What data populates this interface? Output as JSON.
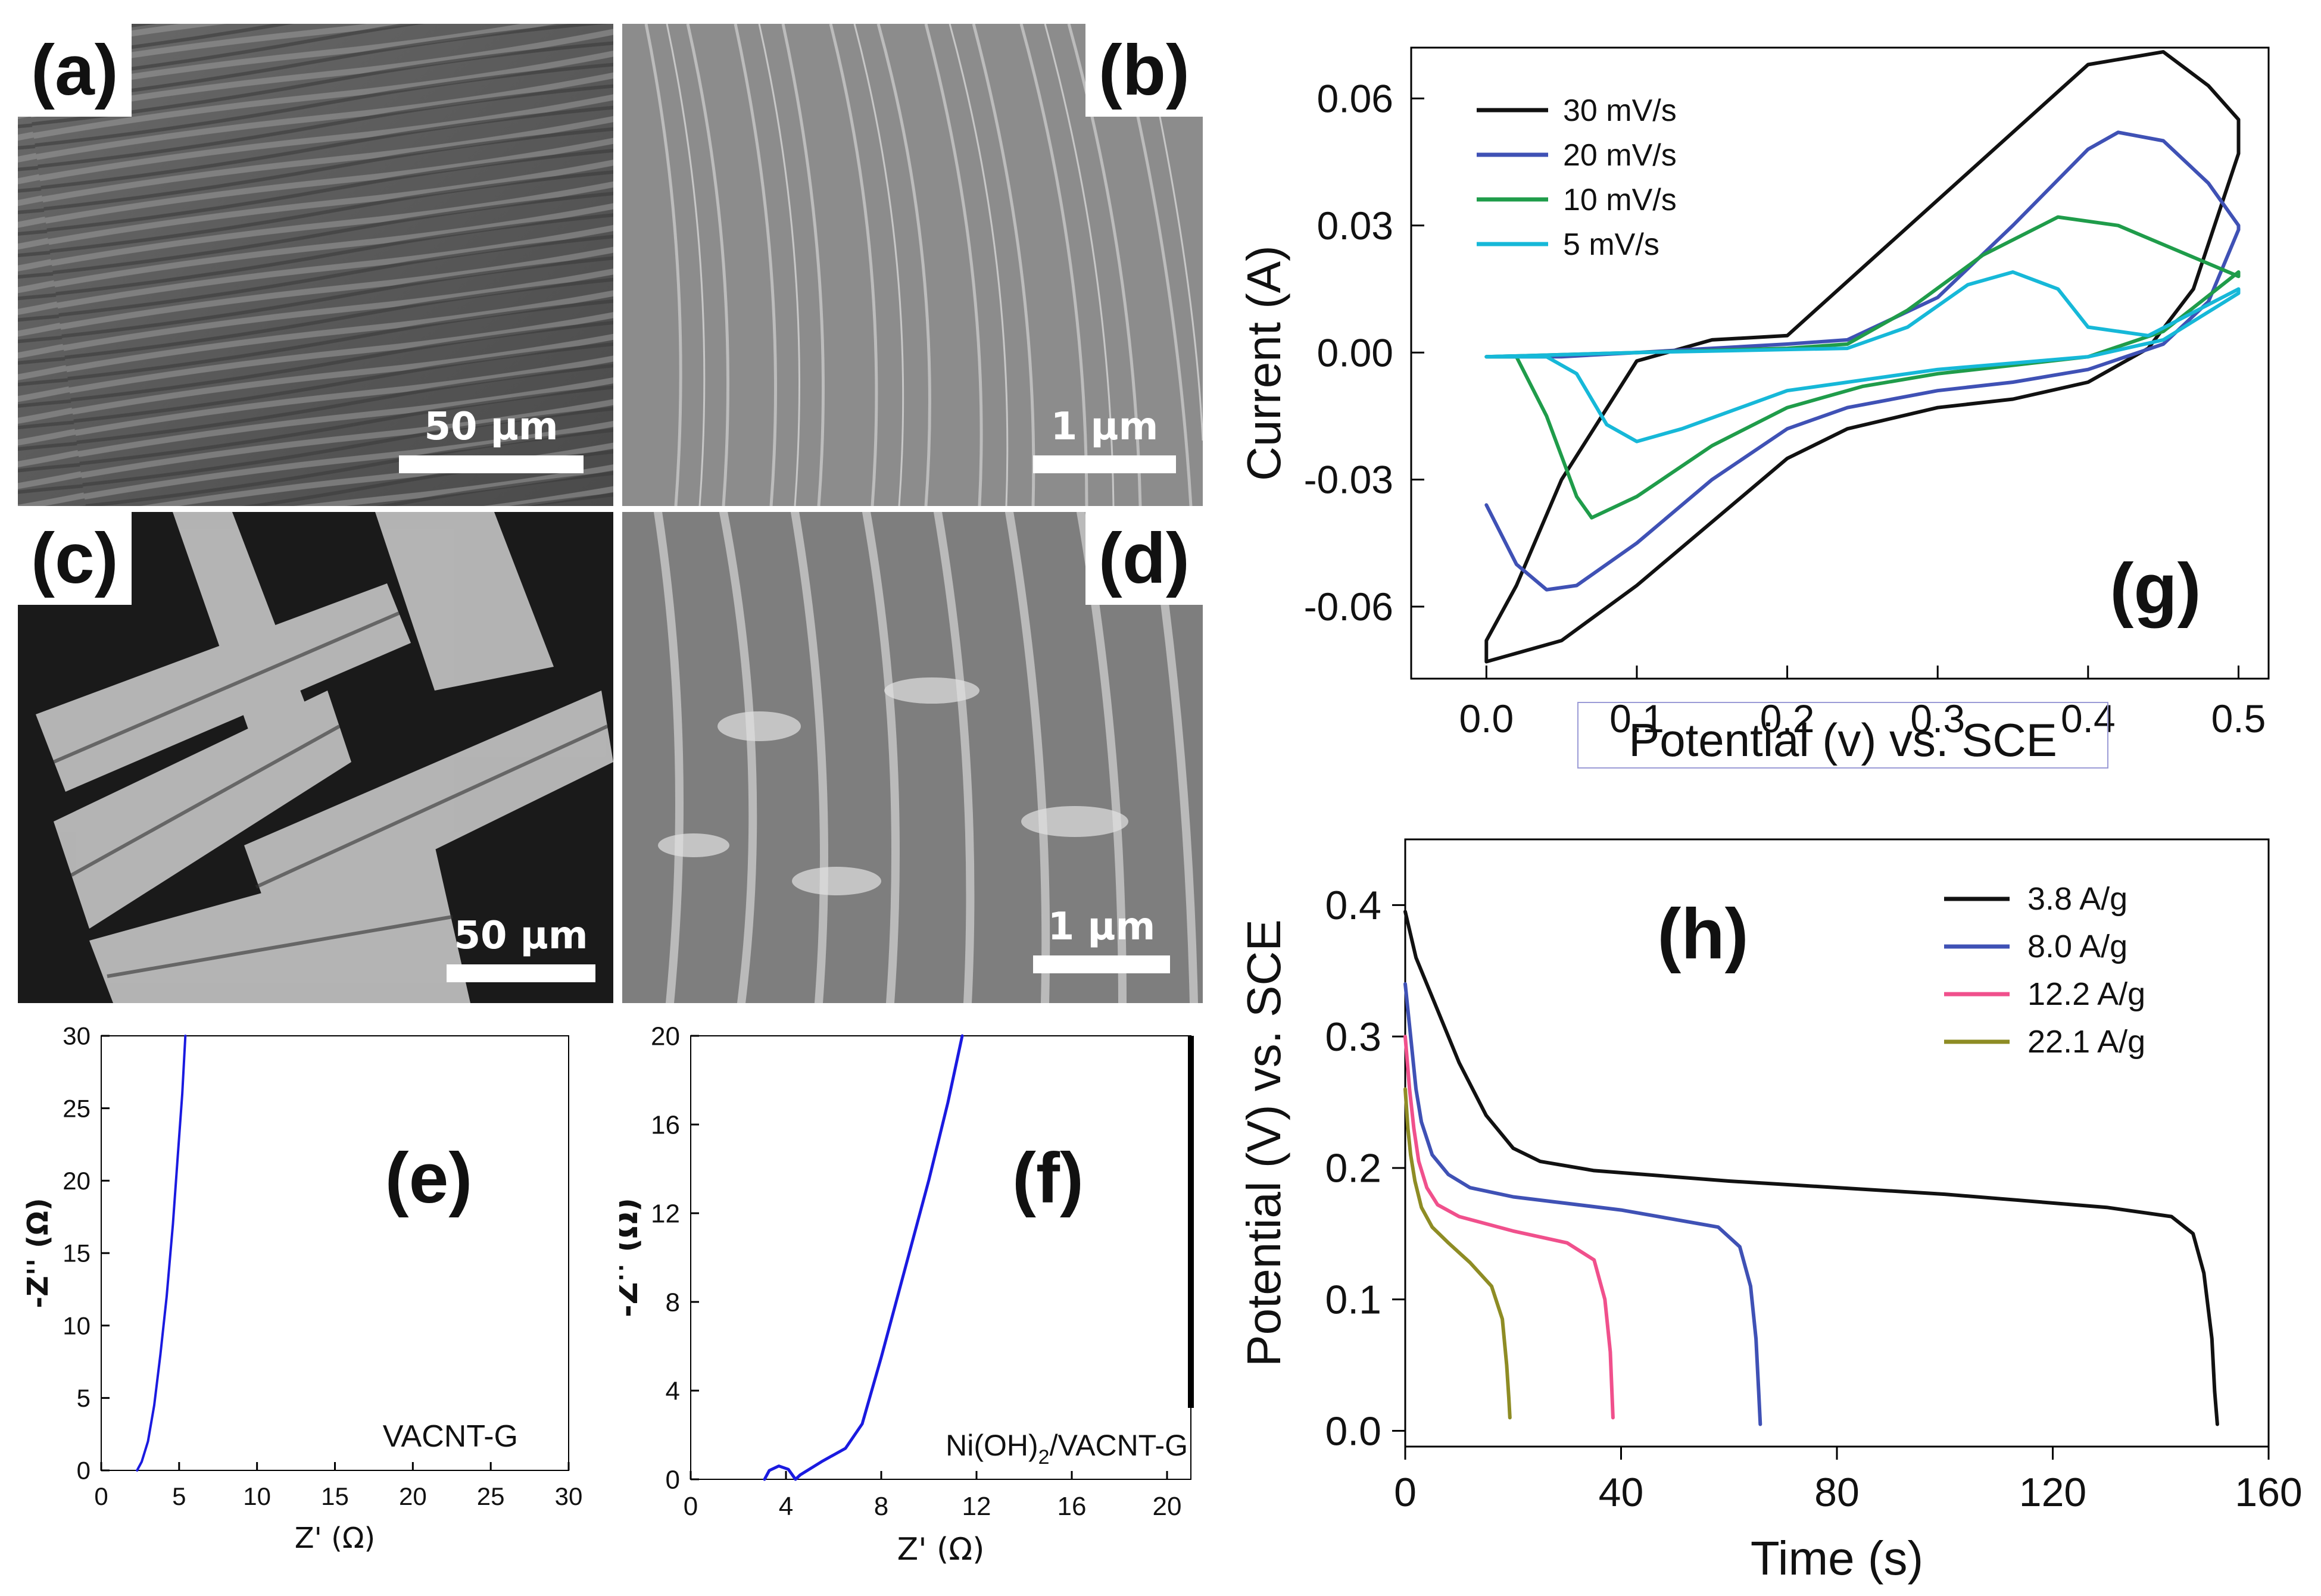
{
  "panels": {
    "a": {
      "label": "(a)",
      "scale": "50 µm"
    },
    "b": {
      "label": "(b)",
      "scale": "1 µm"
    },
    "c": {
      "label": "(c)",
      "scale": "50 µm"
    },
    "d": {
      "label": "(d)",
      "scale": "1 µm"
    }
  },
  "colors": {
    "black": "#111111",
    "blue": "#3f51b5",
    "green": "#1f9c4a",
    "cyan": "#16b8d8",
    "pink": "#f0508c",
    "olive": "#8e8c24",
    "nyquist": "#1a1ae0"
  },
  "chart_data": [
    {
      "id": "e",
      "type": "line",
      "panel_label": "(e)",
      "annotation": "VACNT-G",
      "xlabel": "Z' (Ω)",
      "ylabel": "-Z'' (Ω)",
      "xlim": [
        0,
        30
      ],
      "ylim": [
        0,
        30
      ],
      "xticks": [
        "0",
        "5",
        "10",
        "15",
        "20",
        "25",
        "30"
      ],
      "yticks": [
        "0",
        "5",
        "10",
        "15",
        "20",
        "25",
        "30"
      ],
      "series": [
        {
          "name": "VACNT-G",
          "x": [
            2.3,
            2.6,
            3.0,
            3.4,
            3.8,
            4.2,
            4.6,
            4.9,
            5.2,
            5.4
          ],
          "y": [
            0,
            0.6,
            2,
            4.5,
            8,
            12,
            17,
            21.5,
            26,
            30
          ]
        }
      ]
    },
    {
      "id": "f",
      "type": "line",
      "panel_label": "(f)",
      "annotation": "Ni(OH)2/VACNT-G",
      "annotation_main": "Ni(OH)",
      "annotation_sub": "2",
      "annotation_rest": "/VACNT-G",
      "xlabel": "Z' (Ω)",
      "ylabel": "-Z'' (Ω)",
      "xlim": [
        0,
        21
      ],
      "ylim": [
        0,
        20
      ],
      "xticks": [
        "0",
        "4",
        "8",
        "12",
        "16",
        "20"
      ],
      "yticks": [
        "0",
        "4",
        "8",
        "12",
        "16",
        "20"
      ],
      "series": [
        {
          "name": "Ni(OH)2/VACNT-G",
          "x": [
            3.1,
            3.3,
            3.7,
            4.1,
            4.4,
            4.6,
            5.5,
            6.5,
            7.2,
            8.0,
            9.0,
            10.0,
            10.8,
            11.4
          ],
          "y": [
            0,
            0.4,
            0.6,
            0.45,
            0,
            0.2,
            0.8,
            1.4,
            2.5,
            5.5,
            9.5,
            13.5,
            17,
            20
          ]
        }
      ]
    },
    {
      "id": "g",
      "type": "line",
      "panel_label": "(g)",
      "xlabel": "Potential (v) vs. SCE",
      "ylabel": "Current (A)",
      "xlim": [
        -0.05,
        0.52
      ],
      "ylim": [
        -0.077,
        0.072
      ],
      "xticks": [
        "0.0",
        "0.1",
        "0.2",
        "0.3",
        "0.4",
        "0.5"
      ],
      "yticks": [
        "-0.06",
        "-0.03",
        "0.00",
        "0.03",
        "0.06"
      ],
      "series": [
        {
          "name": "30 mV/s",
          "color": "black",
          "x": [
            0.0,
            0.05,
            0.1,
            0.2,
            0.24,
            0.3,
            0.35,
            0.4,
            0.44,
            0.47,
            0.5,
            0.5,
            0.48,
            0.45,
            0.4,
            0.3,
            0.2,
            0.15,
            0.1,
            0.05,
            0.02,
            0.0,
            0.0
          ],
          "y": [
            -0.073,
            -0.068,
            -0.055,
            -0.025,
            -0.018,
            -0.013,
            -0.011,
            -0.007,
            0.001,
            0.015,
            0.047,
            0.055,
            0.063,
            0.071,
            0.068,
            0.036,
            0.004,
            0.003,
            -0.002,
            -0.03,
            -0.055,
            -0.068,
            -0.073
          ]
        },
        {
          "name": "20 mV/s",
          "color": "blue",
          "x": [
            0.0,
            0.02,
            0.04,
            0.06,
            0.1,
            0.15,
            0.2,
            0.24,
            0.3,
            0.35,
            0.4,
            0.45,
            0.48,
            0.5,
            0.5,
            0.48,
            0.45,
            0.42,
            0.4,
            0.35,
            0.3,
            0.24,
            0.2,
            0.15,
            0.1,
            0.05,
            0.02,
            0.0
          ],
          "y": [
            -0.036,
            -0.05,
            -0.056,
            -0.055,
            -0.045,
            -0.03,
            -0.018,
            -0.013,
            -0.009,
            -0.007,
            -0.004,
            0.002,
            0.012,
            0.029,
            0.03,
            0.04,
            0.05,
            0.052,
            0.048,
            0.03,
            0.013,
            0.003,
            0.002,
            0.001,
            0.0,
            -0.001,
            -0.001,
            -0.001
          ]
        },
        {
          "name": "10 mV/s",
          "color": "green",
          "x": [
            0.0,
            0.02,
            0.04,
            0.06,
            0.07,
            0.1,
            0.15,
            0.2,
            0.25,
            0.3,
            0.35,
            0.4,
            0.45,
            0.5,
            0.5,
            0.46,
            0.42,
            0.38,
            0.33,
            0.28,
            0.24,
            0.2,
            0.1,
            0.0
          ],
          "y": [
            -0.001,
            -0.001,
            -0.015,
            -0.034,
            -0.039,
            -0.034,
            -0.022,
            -0.013,
            -0.008,
            -0.005,
            -0.003,
            -0.001,
            0.005,
            0.019,
            0.018,
            0.024,
            0.03,
            0.032,
            0.023,
            0.01,
            0.002,
            0.001,
            0.0,
            -0.001
          ]
        },
        {
          "name": "5 mV/s",
          "color": "cyan",
          "x": [
            0.0,
            0.04,
            0.06,
            0.08,
            0.1,
            0.13,
            0.2,
            0.3,
            0.4,
            0.45,
            0.5,
            0.5,
            0.44,
            0.4,
            0.38,
            0.35,
            0.32,
            0.28,
            0.24,
            0.1,
            0.0
          ],
          "y": [
            -0.001,
            -0.001,
            -0.005,
            -0.017,
            -0.021,
            -0.018,
            -0.009,
            -0.004,
            -0.001,
            0.003,
            0.014,
            0.015,
            0.004,
            0.006,
            0.015,
            0.019,
            0.016,
            0.006,
            0.001,
            0.0,
            -0.001
          ]
        }
      ]
    },
    {
      "id": "h",
      "type": "line",
      "panel_label": "(h)",
      "xlabel": "Time (s)",
      "ylabel": "Potential (V) vs. SCE",
      "xlim": [
        0,
        160
      ],
      "ylim": [
        -0.012,
        0.45
      ],
      "xticks": [
        "0",
        "40",
        "80",
        "120",
        "160"
      ],
      "yticks": [
        "0.0",
        "0.1",
        "0.2",
        "0.3",
        "0.4"
      ],
      "series": [
        {
          "name": "3.8 A/g",
          "color": "black",
          "x": [
            0,
            2,
            6,
            10,
            15,
            20,
            25,
            35,
            60,
            100,
            130,
            142,
            146,
            148,
            149.5,
            150,
            150.5
          ],
          "y": [
            0.395,
            0.36,
            0.32,
            0.28,
            0.24,
            0.215,
            0.205,
            0.198,
            0.19,
            0.18,
            0.17,
            0.163,
            0.15,
            0.12,
            0.07,
            0.03,
            0.005
          ]
        },
        {
          "name": "8.0 A/g",
          "color": "blue",
          "x": [
            0,
            1,
            2,
            3,
            5,
            8,
            12,
            20,
            40,
            58,
            62,
            64,
            65,
            65.5,
            65.8
          ],
          "y": [
            0.34,
            0.3,
            0.26,
            0.235,
            0.21,
            0.195,
            0.185,
            0.178,
            0.168,
            0.155,
            0.14,
            0.11,
            0.07,
            0.03,
            0.005
          ]
        },
        {
          "name": "12.2 A/g",
          "color": "pink",
          "x": [
            0,
            0.8,
            1.6,
            2.5,
            4,
            6,
            10,
            20,
            30,
            35,
            37,
            38,
            38.3,
            38.5
          ],
          "y": [
            0.3,
            0.26,
            0.23,
            0.205,
            0.185,
            0.172,
            0.163,
            0.152,
            0.143,
            0.13,
            0.1,
            0.06,
            0.03,
            0.01
          ]
        },
        {
          "name": "22.1 A/g",
          "color": "olive",
          "x": [
            0,
            0.5,
            1,
            1.8,
            3,
            5,
            8,
            12,
            16,
            18,
            18.8,
            19.2,
            19.4
          ],
          "y": [
            0.26,
            0.23,
            0.21,
            0.19,
            0.17,
            0.155,
            0.143,
            0.128,
            0.11,
            0.085,
            0.05,
            0.025,
            0.01
          ]
        }
      ]
    }
  ]
}
